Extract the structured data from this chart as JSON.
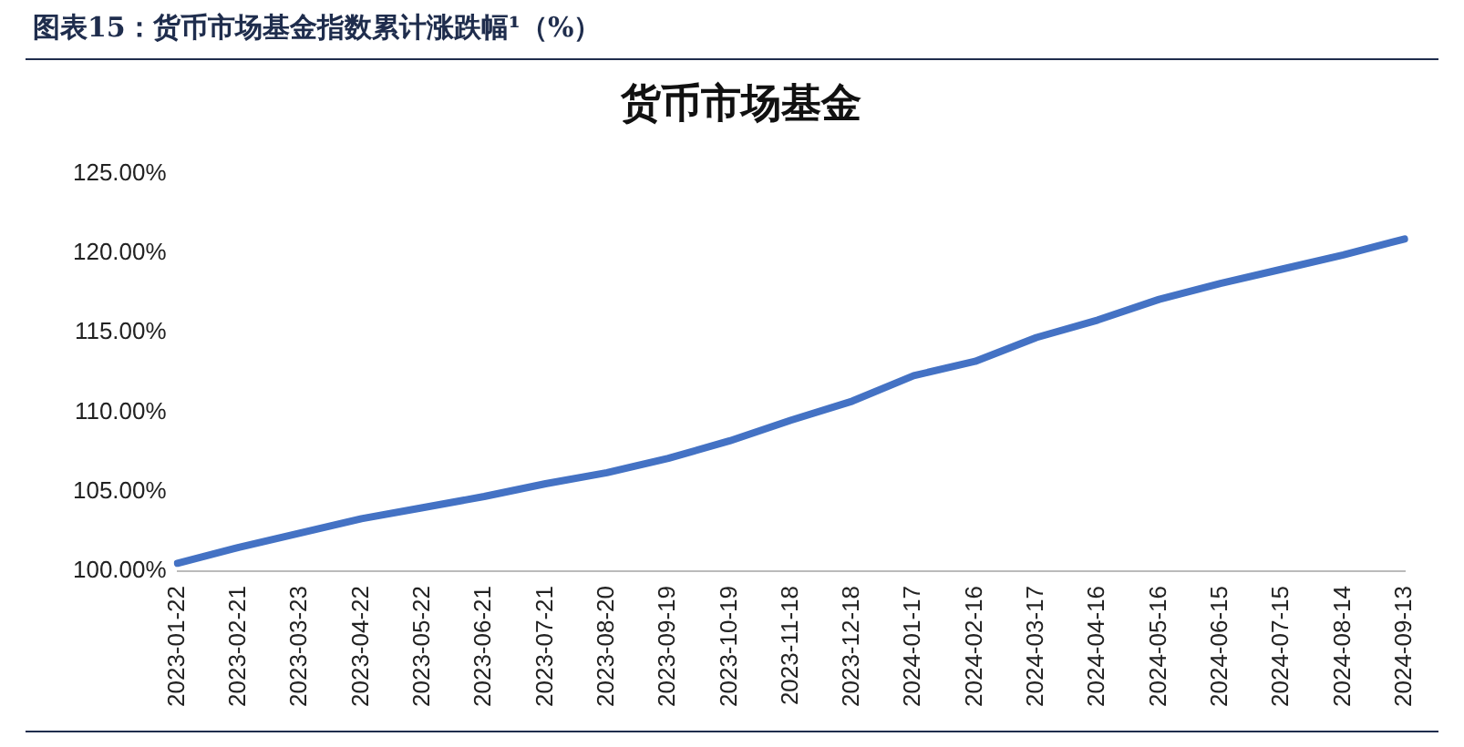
{
  "chart_data": {
    "type": "line",
    "title": "图表15：货币市场基金指数累计涨跌幅¹（%）",
    "subtitle": "货币市场基金",
    "categories": [
      "2023-01-22",
      "2023-02-21",
      "2023-03-23",
      "2023-04-22",
      "2023-05-22",
      "2023-06-21",
      "2023-07-21",
      "2023-08-20",
      "2023-09-19",
      "2023-10-19",
      "2023-11-18",
      "2023-12-18",
      "2024-01-17",
      "2024-02-16",
      "2024-03-17",
      "2024-04-16",
      "2024-05-16",
      "2024-06-15",
      "2024-07-15",
      "2024-08-14",
      "2024-09-13"
    ],
    "series": [
      {
        "color": "#4472c4",
        "values": [
          100.5,
          101.5,
          102.4,
          103.3,
          104.0,
          104.7,
          105.5,
          106.2,
          107.1,
          108.2,
          109.5,
          110.7,
          112.3,
          113.2,
          114.7,
          115.8,
          117.1,
          118.1,
          119.0,
          119.9,
          120.9
        ]
      }
    ],
    "ylim": [
      100,
      125
    ],
    "yticks": [
      {
        "value": 100,
        "label": "100.00%"
      },
      {
        "value": 105,
        "label": "105.00%"
      },
      {
        "value": 110,
        "label": "110.00%"
      },
      {
        "value": 115,
        "label": "115.00%"
      },
      {
        "value": 120,
        "label": "120.00%"
      },
      {
        "value": 125,
        "label": "125.00%"
      }
    ],
    "grid": false,
    "legend": false,
    "marker": "none",
    "line_style": "solid"
  }
}
